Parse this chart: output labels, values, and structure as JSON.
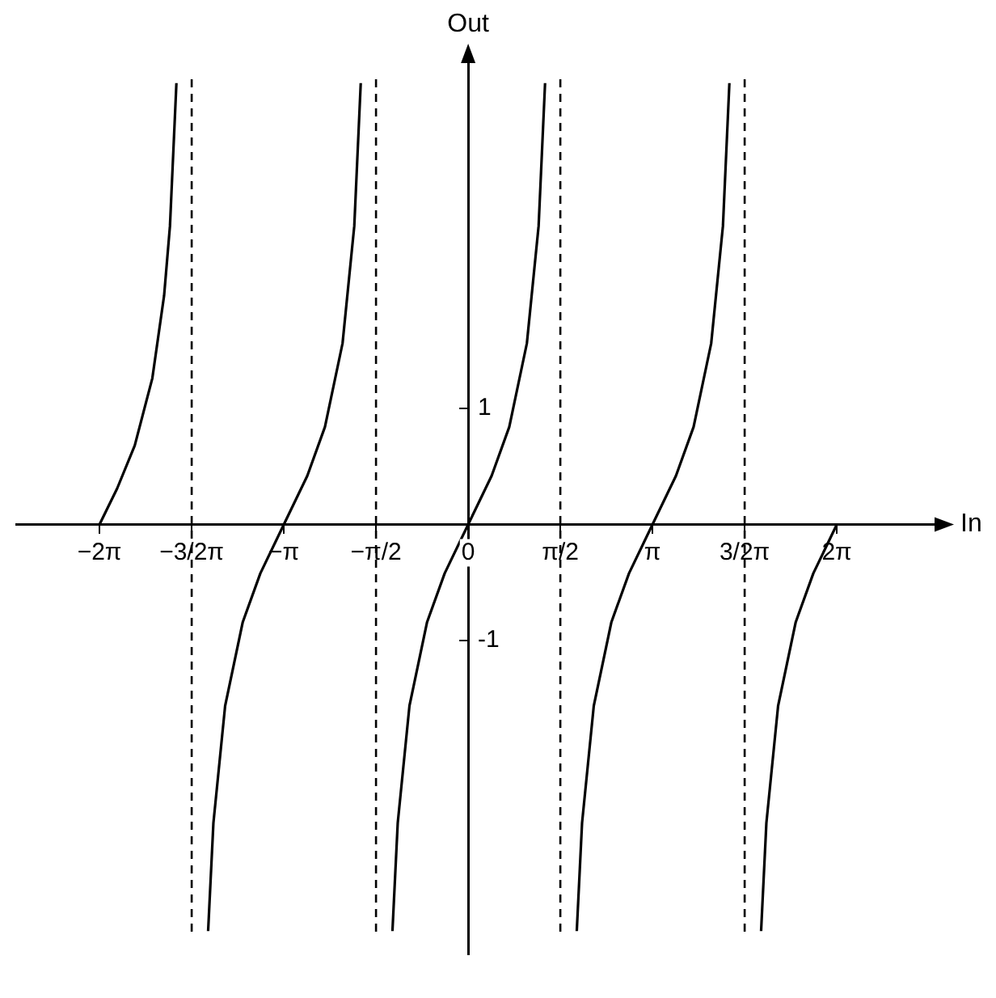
{
  "chart_data": {
    "type": "line",
    "xlabel": "In",
    "ylabel": "Out",
    "x": [
      -6.28,
      -5.98,
      -5.68,
      -5.38,
      -5.18,
      -5.08,
      -4.97,
      -4.71,
      -4.43,
      -4.34,
      -4.14,
      -3.84,
      -3.54,
      -3.14,
      -2.74,
      -2.44,
      -2.14,
      -1.94,
      -1.83,
      -1.57,
      -1.29,
      -1.2,
      -1.0,
      -0.7,
      -0.4,
      0,
      0.4,
      0.7,
      1.0,
      1.2,
      1.31,
      1.57,
      1.85,
      1.94,
      2.14,
      2.44,
      2.74,
      3.14,
      3.54,
      3.84,
      4.14,
      4.34,
      4.45,
      4.71,
      4.99,
      5.08,
      5.28,
      5.58,
      5.88,
      6.28
    ],
    "series": [
      {
        "color": "#000000",
        "values": [
          0,
          0.31,
          0.68,
          1.26,
          1.97,
          2.57,
          3.8,
          null,
          -3.5,
          -2.57,
          -1.56,
          -0.84,
          -0.42,
          0,
          0.42,
          0.84,
          1.56,
          2.57,
          3.8,
          null,
          -3.5,
          -2.57,
          -1.56,
          -0.84,
          -0.42,
          0,
          0.42,
          0.84,
          1.56,
          2.57,
          3.8,
          null,
          -3.5,
          -2.57,
          -1.56,
          -0.84,
          -0.42,
          0,
          0.42,
          0.84,
          1.56,
          2.57,
          3.8,
          null,
          -3.5,
          -2.57,
          -1.56,
          -0.84,
          -0.42,
          0
        ]
      }
    ],
    "xlim": [
      -7.7,
      8.0
    ],
    "ylim": [
      -3.7,
      4.0
    ],
    "xticks": [
      {
        "value": -6.28,
        "label": "−2π"
      },
      {
        "value": -4.71,
        "label": "−3/2π"
      },
      {
        "value": -3.14,
        "label": "−π"
      },
      {
        "value": -1.57,
        "label": "−π/2"
      },
      0,
      {
        "value": 1.57,
        "label": "π/2"
      },
      {
        "value": 3.14,
        "label": "π"
      },
      {
        "value": 4.71,
        "label": "3/2π"
      },
      {
        "value": 6.28,
        "label": "2π"
      }
    ],
    "yticks": [
      1,
      -1
    ],
    "ref_lines": [
      {
        "axis": "x",
        "value": -4.71,
        "color": "#000000",
        "line_style": "dashed"
      },
      {
        "axis": "x",
        "value": -1.57,
        "color": "#000000",
        "line_style": "dashed"
      },
      {
        "axis": "x",
        "value": 1.57,
        "color": "#000000",
        "line_style": "dashed"
      },
      {
        "axis": "x",
        "value": 4.71,
        "color": "#000000",
        "line_style": "dashed"
      }
    ],
    "grid": false,
    "legend": false,
    "marker": "none",
    "line_style": "solid"
  }
}
